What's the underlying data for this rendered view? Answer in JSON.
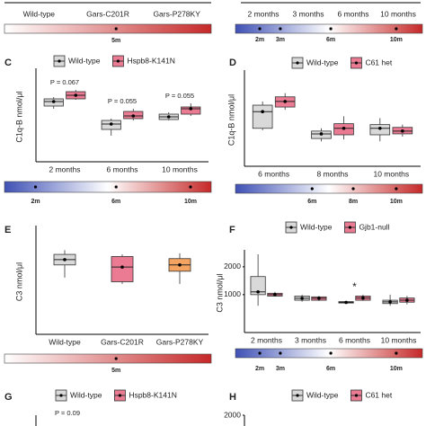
{
  "chart_data": [
    {
      "type": "box",
      "categories": [
        "Wild-type",
        "Gars-C201R",
        "Gars-P278KY"
      ],
      "timeline": {
        "labels": [
          "5m"
        ],
        "colors": [
          "#ffffff",
          "#c62828"
        ]
      }
    },
    {
      "type": "box",
      "categories": [
        "2 months",
        "3 months",
        "6 months",
        "10 months"
      ],
      "timeline": {
        "labels": [
          "2m",
          "3m",
          "6m",
          "10m"
        ],
        "colors": [
          "#3f51b5",
          "#ffffff",
          "#c62828"
        ]
      }
    },
    {
      "type": "box",
      "panel": "C",
      "ylabel": "C1q-B nmol/μl",
      "ylim": [
        0,
        100
      ],
      "categories": [
        "2 months",
        "6 months",
        "10 months"
      ],
      "series": [
        {
          "name": "Wild-type",
          "color": "#d9d9d9",
          "boxes": [
            {
              "min": 59,
              "q1": 62,
              "median": 67,
              "q3": 70,
              "max": 72
            },
            {
              "min": 29,
              "q1": 36,
              "median": 42,
              "q3": 46,
              "max": 48
            },
            {
              "min": 46,
              "q1": 47,
              "median": 50,
              "q3": 53,
              "max": 55
            }
          ]
        },
        {
          "name": "Hspb8-K141N",
          "color": "#ea7b93",
          "boxes": [
            {
              "min": 69,
              "q1": 70,
              "median": 74,
              "q3": 78,
              "max": 80
            },
            {
              "min": 46,
              "q1": 48,
              "median": 51,
              "q3": 56,
              "max": 59
            },
            {
              "min": 51,
              "q1": 53,
              "median": 59,
              "q3": 61,
              "max": 65
            }
          ]
        }
      ],
      "annotations": [
        {
          "text": "P = 0.067",
          "category": 0
        },
        {
          "text": "P = 0.055",
          "category": 1
        },
        {
          "text": "P = 0.055",
          "category": 2
        }
      ],
      "timeline": {
        "labels": [
          "2m",
          "6m",
          "10m"
        ],
        "colors": [
          "#3f51b5",
          "#ffffff",
          "#c62828"
        ]
      }
    },
    {
      "type": "box",
      "panel": "D",
      "ylabel": "C1q-B nmol/μl",
      "ylim": [
        0,
        100
      ],
      "categories": [
        "6 months",
        "8 months",
        "10 months"
      ],
      "series": [
        {
          "name": "Wild-type",
          "color": "#d9d9d9",
          "boxes": [
            {
              "min": 39,
              "q1": 41,
              "median": 59,
              "q3": 66,
              "max": 70
            },
            {
              "min": 27,
              "q1": 30,
              "median": 35,
              "q3": 38,
              "max": 41
            },
            {
              "min": 27,
              "q1": 34,
              "median": 41,
              "q3": 45,
              "max": 52
            }
          ]
        },
        {
          "name": "C61 het",
          "color": "#ea7b93",
          "boxes": [
            {
              "min": 61,
              "q1": 64,
              "median": 70,
              "q3": 75,
              "max": 79
            },
            {
              "min": 29,
              "q1": 34,
              "median": 41,
              "q3": 46,
              "max": 54
            },
            {
              "min": 32,
              "q1": 35,
              "median": 38,
              "q3": 42,
              "max": 45
            }
          ]
        }
      ],
      "timeline": {
        "labels": [
          "6m",
          "8m",
          "10m"
        ],
        "colors": [
          "#3f51b5",
          "#ffffff",
          "#c62828"
        ]
      }
    },
    {
      "type": "box",
      "panel": "E",
      "ylabel": "C3 nmol/μl",
      "ylim": [
        0,
        100
      ],
      "categories": [
        "Wild-type",
        "Gars-C201R",
        "Gars-P278KY"
      ],
      "series": [
        {
          "colors": [
            "#d9d9d9",
            "#ea7b93",
            "#f4a460"
          ],
          "boxes": [
            {
              "min": 54,
              "q1": 66,
              "median": 71,
              "q3": 76,
              "max": 80
            },
            {
              "min": 48,
              "q1": 50,
              "median": 64,
              "q3": 74,
              "max": 76
            },
            {
              "min": 48,
              "q1": 60,
              "median": 66,
              "q3": 72,
              "max": 77
            }
          ]
        }
      ],
      "timeline": {
        "labels": [
          "5m"
        ],
        "colors": [
          "#ffffff",
          "#c62828"
        ]
      }
    },
    {
      "type": "box",
      "panel": "F",
      "ylabel": "C3 nmol/μl",
      "ylim": [
        -360,
        2480
      ],
      "yticks": [
        1000,
        2000
      ],
      "categories": [
        "2 months",
        "3 months",
        "6 months",
        "10 months"
      ],
      "series": [
        {
          "name": "Wild-type",
          "color": "#d9d9d9",
          "boxes": [
            {
              "min": 600,
              "q1": 1000,
              "median": 1100,
              "q3": 1650,
              "max": 2450
            },
            {
              "min": 750,
              "q1": 800,
              "median": 870,
              "q3": 950,
              "max": 1000
            },
            {
              "min": 680,
              "q1": 700,
              "median": 720,
              "q3": 750,
              "max": 780
            },
            {
              "min": 600,
              "q1": 680,
              "median": 740,
              "q3": 800,
              "max": 1000
            }
          ]
        },
        {
          "name": "Gjb1-null",
          "color": "#ea7b93",
          "boxes": [
            {
              "min": 950,
              "q1": 950,
              "median": 1000,
              "q3": 1050,
              "max": 1100
            },
            {
              "min": 780,
              "q1": 800,
              "median": 870,
              "q3": 920,
              "max": 950
            },
            {
              "min": 780,
              "q1": 800,
              "median": 880,
              "q3": 950,
              "max": 1000
            },
            {
              "min": 650,
              "q1": 730,
              "median": 800,
              "q3": 880,
              "max": 950
            }
          ]
        }
      ],
      "annotations": [
        {
          "text": "*",
          "category": 2
        }
      ],
      "timeline": {
        "labels": [
          "2m",
          "3m",
          "6m",
          "10m"
        ],
        "colors": [
          "#3f51b5",
          "#ffffff",
          "#c62828"
        ]
      }
    },
    {
      "type": "box",
      "panel": "G",
      "series": [
        {
          "name": "Wild-type",
          "color": "#d9d9d9"
        },
        {
          "name": "Hspb8-K141N",
          "color": "#ea7b93"
        }
      ],
      "annotations": [
        {
          "text": "P = 0.09"
        }
      ]
    },
    {
      "type": "box",
      "panel": "H",
      "yticks": [
        2000
      ],
      "series": [
        {
          "name": "Wild-type",
          "color": "#d9d9d9"
        },
        {
          "name": "C61 het",
          "color": "#ea7b93"
        }
      ]
    }
  ]
}
